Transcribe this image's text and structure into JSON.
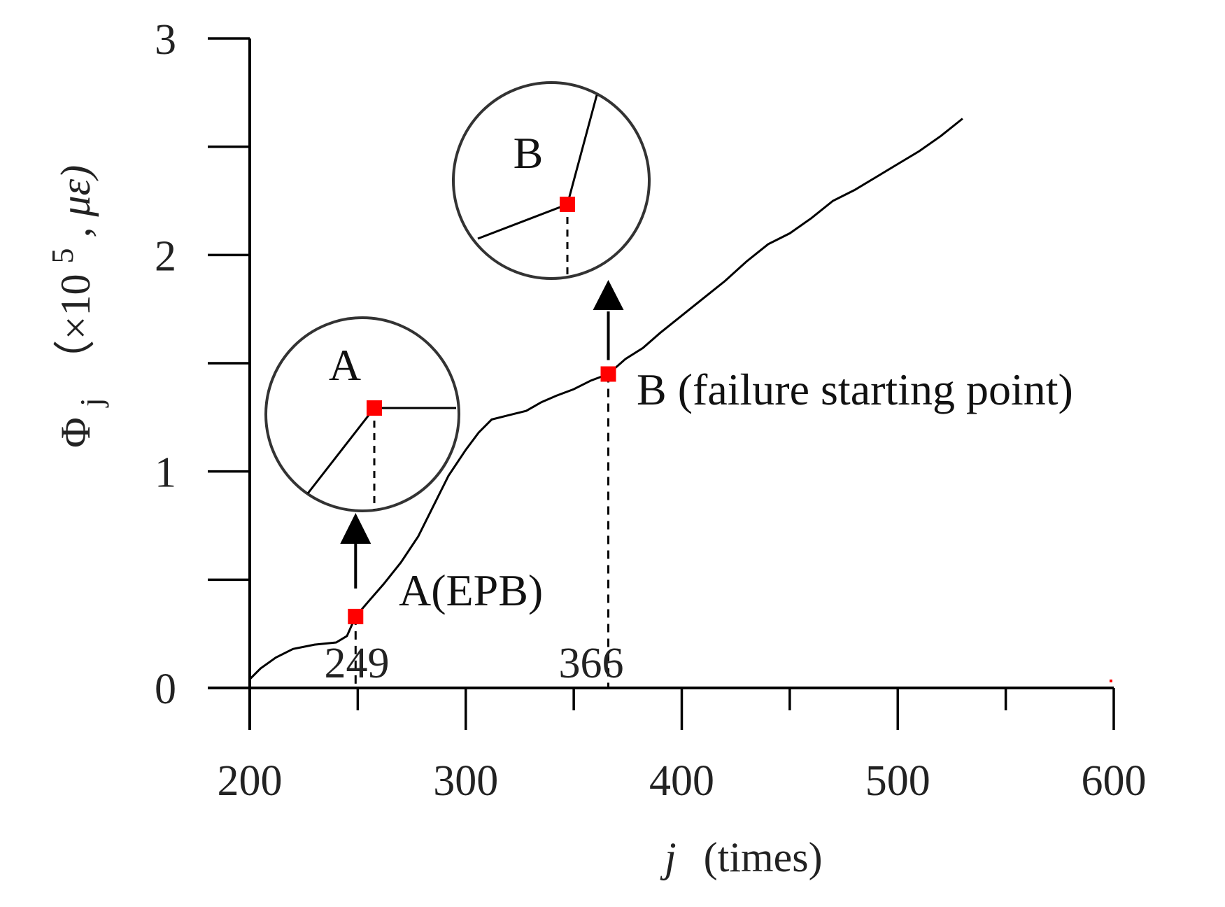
{
  "chart_data": {
    "type": "line",
    "xlabel": "j  (times)",
    "xlabel_parts": {
      "var": "j",
      "unit": "(times)"
    },
    "ylabel_parts": {
      "symbol": "Φ",
      "sub": "j",
      "text": "（×10",
      "sup": "5",
      "unit": ", με)"
    },
    "xlim": [
      200,
      600
    ],
    "ylim": [
      0,
      3
    ],
    "x_ticks": [
      200,
      300,
      400,
      500,
      600
    ],
    "x_minor_ticks": [
      250,
      350,
      450,
      550
    ],
    "y_ticks": [
      0,
      1,
      2,
      3
    ],
    "y_minor_ticks": [
      0.5,
      1.5,
      2.5
    ],
    "grid": false,
    "series": [
      {
        "x": [
          200,
          205,
          212,
          220,
          230,
          240,
          245,
          249,
          255,
          262,
          270,
          278,
          285,
          292,
          300,
          306,
          312,
          320,
          328,
          335,
          342,
          350,
          358,
          366,
          374,
          382,
          390,
          400,
          410,
          420,
          430,
          440,
          450,
          460,
          470,
          480,
          490,
          500,
          510,
          520,
          530
        ],
        "y": [
          0.04,
          0.09,
          0.14,
          0.18,
          0.2,
          0.21,
          0.24,
          0.33,
          0.4,
          0.48,
          0.58,
          0.7,
          0.84,
          0.98,
          1.1,
          1.18,
          1.24,
          1.26,
          1.28,
          1.32,
          1.35,
          1.38,
          1.42,
          1.45,
          1.52,
          1.57,
          1.64,
          1.72,
          1.8,
          1.88,
          1.97,
          2.05,
          2.1,
          2.17,
          2.25,
          2.3,
          2.36,
          2.42,
          2.48,
          2.55,
          2.63
        ]
      }
    ],
    "points": [
      {
        "id": "A",
        "x": 249,
        "y": 0.33,
        "label": "A(EPB)",
        "tick_label": "249"
      },
      {
        "id": "B",
        "x": 366,
        "y": 1.45,
        "label": "B (failure starting point)",
        "tick_label": "366"
      }
    ],
    "insets": [
      {
        "label": "A"
      },
      {
        "label": "B"
      }
    ],
    "colors": {
      "marker": "#ff0000",
      "line": "#000000"
    }
  }
}
